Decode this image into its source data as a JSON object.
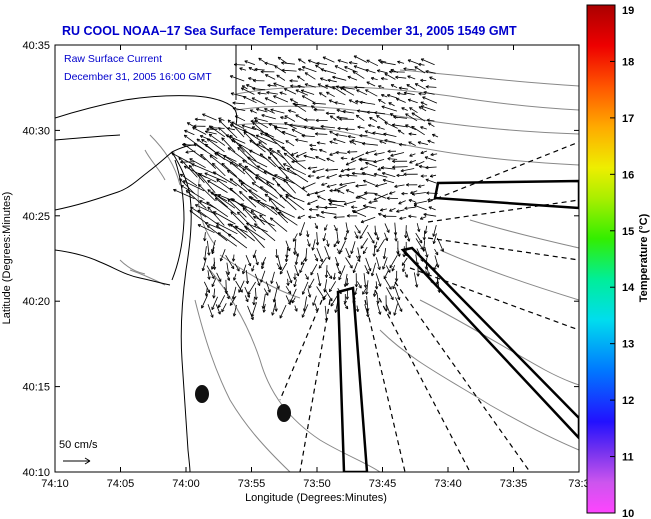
{
  "title": "RU COOL   NOAA–17  Sea Surface Temperature:  December 31, 2005 1549 GMT",
  "annotation": {
    "line1": "Raw Surface Current",
    "line2": "December 31, 2005 16:00 GMT"
  },
  "scale_label": "50 cm/s",
  "x_axis": {
    "label": "Longitude (Degrees:Minutes)",
    "ticks": [
      "74:10",
      "74:05",
      "74:00",
      "73:55",
      "73:50",
      "73:45",
      "73:40",
      "73:35",
      "73:3"
    ]
  },
  "y_axis": {
    "label": "Latitude (Degrees:Minutes)",
    "ticks": [
      "40:35",
      "40:30",
      "40:25",
      "40:20",
      "40:15",
      "40:10"
    ]
  },
  "colorbar": {
    "label": "Temperature (°C)",
    "ticks": [
      "19",
      "18",
      "17",
      "16",
      "15",
      "14",
      "13",
      "12",
      "11",
      "10"
    ],
    "min": 10,
    "max": 19
  },
  "colors": {
    "title": "#0000cc",
    "annotation": "#0000cc",
    "coastline": "#000000",
    "bathymetry": "#888888"
  }
}
